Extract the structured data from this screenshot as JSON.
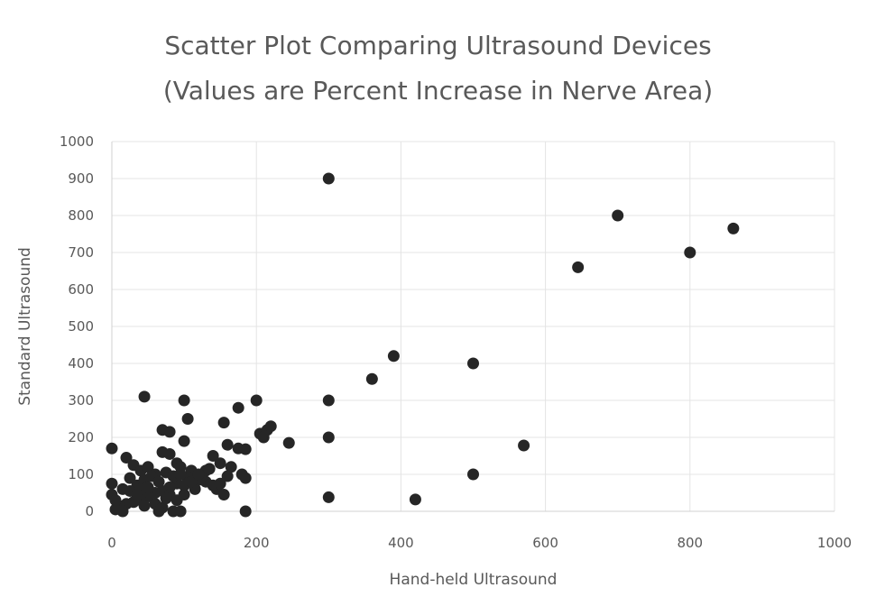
{
  "chart_data": {
    "type": "scatter",
    "title_line1": "Scatter Plot Comparing Ultrasound Devices",
    "title_line2": "(Values are Percent Increase in Nerve Area)",
    "xlabel": "Hand-held Ultrasound",
    "ylabel": "Standard Ultrasound",
    "xlim": [
      0,
      1000
    ],
    "ylim": [
      0,
      1000
    ],
    "xticks": [
      0,
      200,
      400,
      600,
      800,
      1000
    ],
    "yticks": [
      0,
      100,
      200,
      300,
      400,
      500,
      600,
      700,
      800,
      900,
      1000
    ],
    "grid": true,
    "marker_color": "#262626",
    "points": [
      [
        300,
        900
      ],
      [
        700,
        800
      ],
      [
        860,
        765
      ],
      [
        800,
        700
      ],
      [
        645,
        660
      ],
      [
        390,
        420
      ],
      [
        500,
        400
      ],
      [
        360,
        358
      ],
      [
        300,
        300
      ],
      [
        300,
        200
      ],
      [
        570,
        178
      ],
      [
        500,
        100
      ],
      [
        300,
        38
      ],
      [
        420,
        32
      ],
      [
        245,
        185
      ],
      [
        200,
        300
      ],
      [
        205,
        210
      ],
      [
        215,
        220
      ],
      [
        220,
        230
      ],
      [
        210,
        200
      ],
      [
        175,
        280
      ],
      [
        155,
        240
      ],
      [
        175,
        170
      ],
      [
        160,
        180
      ],
      [
        185,
        168
      ],
      [
        180,
        100
      ],
      [
        185,
        90
      ],
      [
        140,
        150
      ],
      [
        150,
        130
      ],
      [
        130,
        110
      ],
      [
        165,
        120
      ],
      [
        145,
        60
      ],
      [
        155,
        45
      ],
      [
        185,
        0
      ],
      [
        100,
        300
      ],
      [
        105,
        250
      ],
      [
        100,
        190
      ],
      [
        70,
        220
      ],
      [
        80,
        215
      ],
      [
        45,
        310
      ],
      [
        0,
        170
      ],
      [
        20,
        145
      ],
      [
        30,
        125
      ],
      [
        40,
        110
      ],
      [
        50,
        120
      ],
      [
        60,
        100
      ],
      [
        70,
        160
      ],
      [
        80,
        155
      ],
      [
        75,
        105
      ],
      [
        90,
        130
      ],
      [
        95,
        120
      ],
      [
        110,
        110
      ],
      [
        105,
        90
      ],
      [
        120,
        85
      ],
      [
        130,
        80
      ],
      [
        140,
        70
      ],
      [
        115,
        60
      ],
      [
        90,
        75
      ],
      [
        80,
        65
      ],
      [
        70,
        55
      ],
      [
        60,
        50
      ],
      [
        50,
        40
      ],
      [
        40,
        30
      ],
      [
        30,
        25
      ],
      [
        20,
        20
      ],
      [
        10,
        15
      ],
      [
        5,
        5
      ],
      [
        15,
        0
      ],
      [
        0,
        45
      ],
      [
        0,
        75
      ],
      [
        5,
        30
      ],
      [
        25,
        90
      ],
      [
        35,
        70
      ],
      [
        45,
        85
      ],
      [
        55,
        95
      ],
      [
        65,
        80
      ],
      [
        85,
        95
      ],
      [
        95,
        100
      ],
      [
        100,
        70
      ],
      [
        110,
        80
      ],
      [
        125,
        95
      ],
      [
        60,
        20
      ],
      [
        70,
        10
      ],
      [
        65,
        0
      ],
      [
        85,
        0
      ],
      [
        95,
        0
      ],
      [
        80,
        45
      ],
      [
        100,
        45
      ],
      [
        90,
        30
      ],
      [
        75,
        35
      ],
      [
        25,
        55
      ],
      [
        15,
        60
      ],
      [
        40,
        60
      ],
      [
        50,
        65
      ],
      [
        45,
        15
      ],
      [
        35,
        45
      ],
      [
        120,
        100
      ],
      [
        135,
        115
      ],
      [
        150,
        75
      ],
      [
        160,
        95
      ]
    ]
  }
}
